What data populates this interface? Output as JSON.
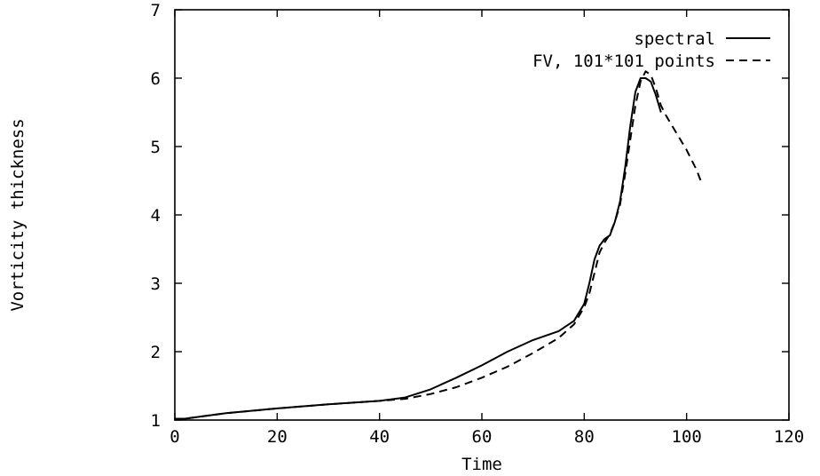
{
  "chart_data": {
    "type": "line",
    "title": "",
    "xlabel": "Time",
    "ylabel": "Vorticity thickness",
    "xlim": [
      0,
      120
    ],
    "ylim": [
      1,
      7
    ],
    "xticks": [
      0,
      20,
      40,
      60,
      80,
      100,
      120
    ],
    "yticks": [
      1,
      2,
      3,
      4,
      5,
      6,
      7
    ],
    "grid": false,
    "legend": "top-right",
    "series": [
      {
        "name": "spectral",
        "style": "solid",
        "color": "#000000",
        "x": [
          0,
          2,
          5,
          10,
          20,
          30,
          40,
          45,
          50,
          55,
          60,
          65,
          70,
          75,
          78,
          80,
          81,
          82,
          83,
          84,
          85,
          86,
          87,
          88,
          89,
          90,
          91,
          92,
          93,
          94,
          95
        ],
        "y": [
          1.02,
          1.02,
          1.05,
          1.1,
          1.17,
          1.23,
          1.28,
          1.33,
          1.45,
          1.62,
          1.8,
          2.0,
          2.17,
          2.3,
          2.45,
          2.7,
          3.0,
          3.35,
          3.55,
          3.65,
          3.7,
          3.9,
          4.2,
          4.7,
          5.3,
          5.8,
          6.0,
          6.0,
          5.95,
          5.75,
          5.5
        ]
      },
      {
        "name": "FV, 101*101 points",
        "style": "dashed",
        "color": "#000000",
        "x": [
          0,
          2,
          5,
          10,
          20,
          30,
          40,
          45,
          50,
          55,
          60,
          65,
          70,
          75,
          78,
          80,
          81,
          82,
          83,
          84,
          85,
          86,
          87,
          88,
          89,
          90,
          91,
          92,
          93,
          94,
          95,
          96,
          98,
          100,
          102,
          103
        ],
        "y": [
          1.02,
          1.02,
          1.05,
          1.1,
          1.17,
          1.23,
          1.28,
          1.31,
          1.38,
          1.48,
          1.62,
          1.78,
          1.98,
          2.2,
          2.4,
          2.65,
          2.85,
          3.15,
          3.45,
          3.6,
          3.72,
          3.9,
          4.15,
          4.6,
          5.1,
          5.6,
          5.95,
          6.1,
          6.05,
          5.85,
          5.6,
          5.45,
          5.2,
          4.95,
          4.65,
          4.45
        ]
      }
    ]
  }
}
